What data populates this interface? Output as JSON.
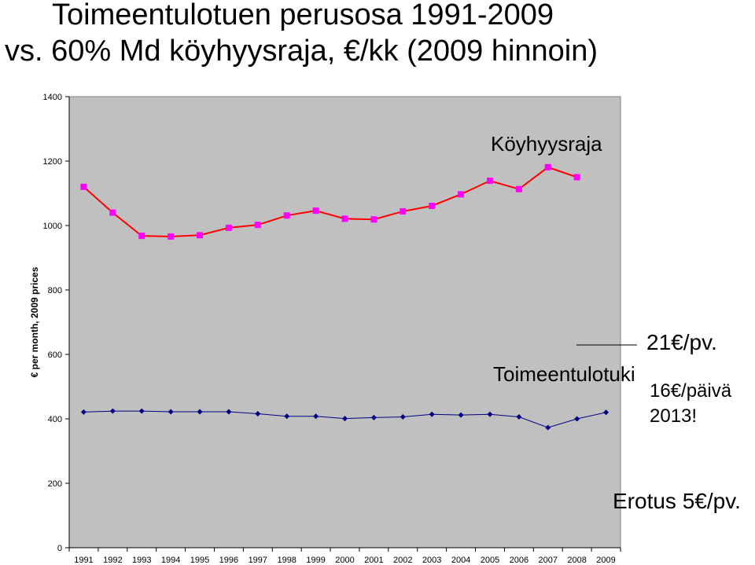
{
  "title": {
    "line1": "Toimeentulotuen perusosa 1991-2009",
    "line2": "vs. 60% Md köyhyysraja, €/kk (2009 hinnoin)"
  },
  "annotations": {
    "poverty_label": "Köyhyysraja",
    "benefit_label": "Toimeentulotuki",
    "per_day": "21€/pv.",
    "per_day_2013_line1": "16€/päivä",
    "per_day_2013_line2": "2013!",
    "difference": "Erotus 5€/pv."
  },
  "chart_data": {
    "type": "line",
    "ylabel": "€ per month, 2009 prices",
    "xlabel": "",
    "ylim": [
      0,
      1400
    ],
    "yticks": [
      0,
      200,
      400,
      600,
      800,
      1000,
      1200,
      1400
    ],
    "grid": false,
    "x": [
      "1991",
      "1992",
      "1993",
      "1994",
      "1995",
      "1996",
      "1997",
      "1998",
      "1999",
      "2000",
      "2001",
      "2002",
      "2003",
      "2004",
      "2005",
      "2006",
      "2007",
      "2008",
      "2009"
    ],
    "series": [
      {
        "name": "Köyhyysraja",
        "color": "#ff00ff",
        "line_color": "#ff0000",
        "marker": "square",
        "values": [
          1120,
          1040,
          968,
          966,
          970,
          993,
          1002,
          1031,
          1046,
          1021,
          1019,
          1044,
          1061,
          1097,
          1139,
          1113,
          1181,
          1150,
          null
        ]
      },
      {
        "name": "Toimeentulotuki",
        "color": "#000080",
        "line_color": "#000080",
        "marker": "diamond",
        "values": [
          421,
          424,
          424,
          422,
          422,
          422,
          416,
          408,
          408,
          401,
          404,
          406,
          414,
          412,
          414,
          406,
          373,
          400,
          420
        ]
      }
    ]
  }
}
